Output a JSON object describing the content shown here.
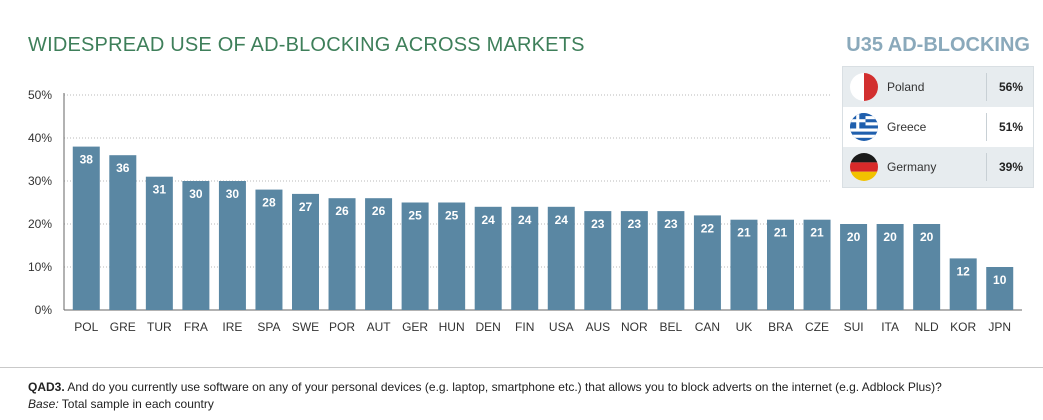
{
  "title": "WIDESPREAD USE OF AD-BLOCKING ACROSS MARKETS",
  "chart_data": {
    "type": "bar",
    "categories": [
      "POL",
      "GRE",
      "TUR",
      "FRA",
      "IRE",
      "SPA",
      "SWE",
      "POR",
      "AUT",
      "GER",
      "HUN",
      "DEN",
      "FIN",
      "USA",
      "AUS",
      "NOR",
      "BEL",
      "CAN",
      "UK",
      "BRA",
      "CZE",
      "SUI",
      "ITA",
      "NLD",
      "KOR",
      "JPN"
    ],
    "values": [
      38,
      36,
      31,
      30,
      30,
      28,
      27,
      26,
      26,
      25,
      25,
      24,
      24,
      24,
      23,
      23,
      23,
      22,
      21,
      21,
      21,
      20,
      20,
      20,
      12,
      10
    ],
    "ylim": [
      0,
      50
    ],
    "yticks": [
      "0%",
      "10%",
      "20%",
      "30%",
      "40%",
      "50%"
    ],
    "grid": true,
    "bar_color": "#5a87a3"
  },
  "inset": {
    "title": "U35 AD-BLOCKING",
    "rows": [
      {
        "country": "Poland",
        "value": "56%",
        "flag": "poland-flag-icon"
      },
      {
        "country": "Greece",
        "value": "51%",
        "flag": "greece-flag-icon"
      },
      {
        "country": "Germany",
        "value": "39%",
        "flag": "germany-flag-icon"
      }
    ]
  },
  "footnote": {
    "question_label": "QAD3.",
    "question": " And do you currently use software on any of your personal devices (e.g. laptop, smartphone etc.) that allows you to block adverts on the internet (e.g. Adblock Plus)?",
    "base_label": "Base:",
    "base": " Total sample in each country"
  }
}
